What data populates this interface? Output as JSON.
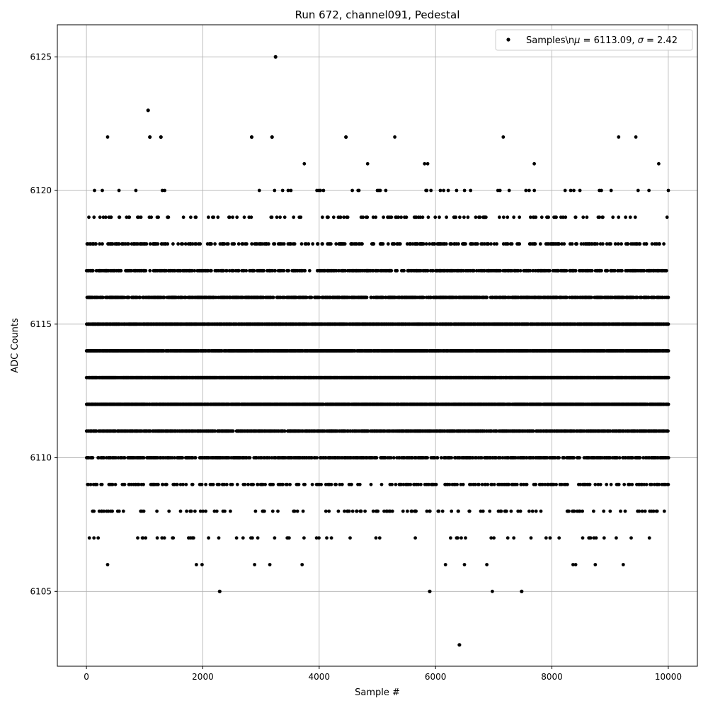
{
  "chart_data": {
    "type": "scatter",
    "title": "Run 672, channel091, Pedestal",
    "xlabel": "Sample #",
    "ylabel": "ADC Counts",
    "xlim": [
      -500,
      10500
    ],
    "ylim": [
      6102.2,
      6126.2
    ],
    "x_ticks": [
      0,
      2000,
      4000,
      6000,
      8000,
      10000
    ],
    "y_ticks": [
      6105,
      6110,
      6115,
      6120,
      6125
    ],
    "grid": true,
    "legend_position": "top-right",
    "marker_color": "#000000",
    "series": [
      {
        "name": "Samples\\nμ = 6113.09, σ = 2.42",
        "mean": 6113.09,
        "sigma": 2.42,
        "x_range": [
          0,
          10000
        ],
        "sample_count": 10000,
        "level_density": {
          "6103": 0.0,
          "6104": 0.0,
          "6105": 0.002,
          "6106": 0.008,
          "6107": 0.045,
          "6108": 0.1,
          "6109": 0.22,
          "6110": 0.45,
          "6111": 0.7,
          "6112": 0.85,
          "6113": 0.9,
          "6114": 0.88,
          "6115": 0.8,
          "6116": 0.55,
          "6117": 0.42,
          "6118": 0.25,
          "6119": 0.1,
          "6120": 0.04,
          "6121": 0.012,
          "6122": 0.004,
          "6123": 0.0,
          "6124": 0.0,
          "6125": 0.0
        },
        "outliers": [
          {
            "x": 3250,
            "y": 6125
          },
          {
            "x": 1060,
            "y": 6123
          },
          {
            "x": 1090,
            "y": 6122
          },
          {
            "x": 1280,
            "y": 6122
          },
          {
            "x": 2840,
            "y": 6122
          },
          {
            "x": 3190,
            "y": 6122
          },
          {
            "x": 4460,
            "y": 6122
          },
          {
            "x": 6410,
            "y": 6103
          },
          {
            "x": 2290,
            "y": 6105
          },
          {
            "x": 5900,
            "y": 6105
          },
          {
            "x": 7480,
            "y": 6105
          }
        ]
      }
    ]
  }
}
